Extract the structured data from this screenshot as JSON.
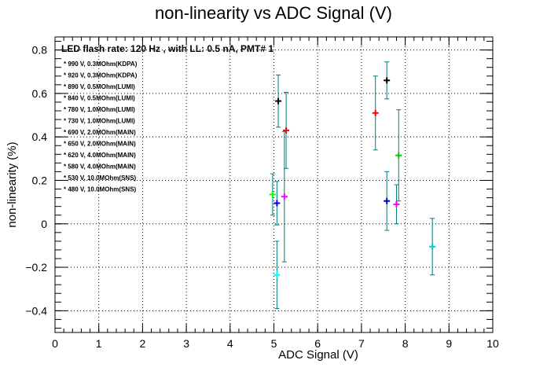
{
  "chart_data": {
    "type": "scatter",
    "title": "non-linearity vs ADC Signal (V)",
    "xlabel": "ADC Signal (V)",
    "ylabel": "non-linearity (%)",
    "xlim": [
      0,
      10
    ],
    "ylim": [
      -0.5,
      0.86
    ],
    "x_ticks": [
      0,
      1,
      2,
      3,
      4,
      5,
      6,
      7,
      8,
      9,
      10
    ],
    "y_ticks": [
      -0.4,
      -0.2,
      0,
      0.2,
      0.4,
      0.6,
      0.8
    ],
    "y_tick_labels": [
      "−0.4",
      "−0.2",
      "0",
      "0.2",
      "0.4",
      "0.6",
      "0.8"
    ],
    "grid": true,
    "legend_header": "LED flash rate: 120 Hz , with LL: 0.5 nA, PMT# 1",
    "legend_position": "top-left",
    "series": [
      {
        "name": "990 V, 0.3MOhm(KDPA)",
        "color": "#000000",
        "x": 7.58,
        "y": 0.66,
        "yerr": 0.085
      },
      {
        "name": "920 V, 0.3MOhm(KDPA)",
        "color": "#000000",
        "x": 5.1,
        "y": 0.565,
        "yerr": 0.12
      },
      {
        "name": "890 V, 0.5MOhm(LUMI)",
        "color": "#ff0000",
        "x": 7.32,
        "y": 0.51,
        "yerr": 0.17
      },
      {
        "name": "840 V, 0.5MOhm(LUMI)",
        "color": "#ff0000",
        "x": 5.28,
        "y": 0.43,
        "yerr": 0.175
      },
      {
        "name": "780 V, 1.0MOhm(LUMI)",
        "color": "#00cc00",
        "x": 7.85,
        "y": 0.315,
        "yerr": 0.21
      },
      {
        "name": "730 V, 1.0MOhm(LUMI)",
        "color": "#00ff00",
        "x": 4.97,
        "y": 0.135,
        "yerr": 0.095
      },
      {
        "name": "690 V, 2.0MOhm(MAIN)",
        "color": "#0000cc",
        "x": 7.58,
        "y": 0.105,
        "yerr": 0.135
      },
      {
        "name": "650 V, 2.0MOhm(MAIN)",
        "color": "#0000ff",
        "x": 5.07,
        "y": 0.095,
        "yerr": 0.1
      },
      {
        "name": "620 V, 4.0MOhm(MAIN)",
        "color": "#ff00ff",
        "x": 5.24,
        "y": 0.125,
        "yerr": 0.3
      },
      {
        "name": "580 V, 4.0MOhm(MAIN)",
        "color": "#ff00ff",
        "x": 7.8,
        "y": 0.09,
        "yerr": 0.09
      },
      {
        "name": "530 V, 10.0MOhm(SNS)",
        "color": "#00cccc",
        "x": 8.62,
        "y": -0.105,
        "yerr": 0.13
      },
      {
        "name": "480 V, 10.0MOhm(SNS)",
        "color": "#00ffff",
        "x": 5.07,
        "y": -0.235,
        "yerr": 0.155
      }
    ]
  }
}
